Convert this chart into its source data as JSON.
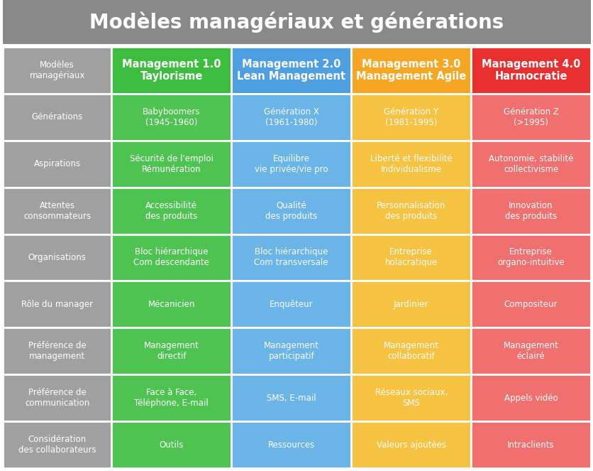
{
  "title": "Modèles managériaux et générations",
  "title_bg": "#888888",
  "title_color": "#ffffff",
  "row_header_bg": "#A0A0A0",
  "row_header_color": "#ffffff",
  "col_header_colors": [
    "#3DBD3D",
    "#4D9FE0",
    "#F5A623",
    "#E83030"
  ],
  "cell_colors_per_col": [
    "#4FC352",
    "#6AB4E8",
    "#F5C242",
    "#F07070"
  ],
  "border_color": "#ffffff",
  "background_color": "#ffffff",
  "rows": [
    {
      "header": "Modèles\nmanagériaux",
      "cells": [
        "Management 1.0\nTaylorisme",
        "Management 2.0\nLean Management",
        "Management 3.0\nManagement Agile",
        "Management 4.0\nHarmocratie"
      ],
      "is_header_row": true
    },
    {
      "header": "Générations",
      "cells": [
        "Babyboomers\n(1945-1960)",
        "Génération X\n(1961-1980)",
        "Génération Y\n(1981-1995)",
        "Génération Z\n(>1995)"
      ],
      "is_header_row": false
    },
    {
      "header": "Aspirations",
      "cells": [
        "Sécurité de l'emploi\nRémunération",
        "Equilibre\nvie privée/vie pro",
        "Liberté et flexibilité\nIndividualisme",
        "Autonomie, stabilité\ncollectivisme"
      ],
      "is_header_row": false
    },
    {
      "header": "Attentes\nconsommateurs",
      "cells": [
        "Accessibilité\ndes produits",
        "Qualité\ndes produits",
        "Personnalisation\ndes produits",
        "Innovation\ndes produits"
      ],
      "is_header_row": false
    },
    {
      "header": "Organisations",
      "cells": [
        "Bloc hiérarchique\nCom descendante",
        "Bloc hiérarchique\nCom transversale",
        "Entreprise\nholacratique",
        "Entreprise\norgano-intuitive"
      ],
      "is_header_row": false
    },
    {
      "header": "Rôle du manager",
      "cells": [
        "Mécanicien",
        "Enquêteur",
        "Jardinier",
        "Compositeur"
      ],
      "is_header_row": false
    },
    {
      "header": "Préférence de\nmanagement",
      "cells": [
        "Management\ndirectif",
        "Management\nparticipatif",
        "Management\ncollaboratif",
        "Management\néclairé"
      ],
      "is_header_row": false
    },
    {
      "header": "Préférence de\ncommunication",
      "cells": [
        "Face à Face,\nTéléphone, E-mail",
        "SMS, E-mail",
        "Réseaux sociaux,\nSMS",
        "Appels vidéo"
      ],
      "is_header_row": false
    },
    {
      "header": "Considération\ndes collaborateurs",
      "cells": [
        "Outils",
        "Ressources",
        "Valeurs ajoutées",
        "Intraclients"
      ],
      "is_header_row": false
    }
  ]
}
